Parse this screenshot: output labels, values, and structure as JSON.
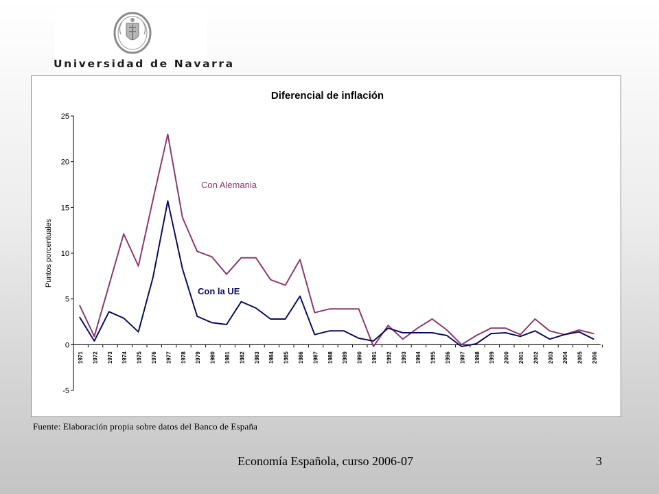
{
  "slide": {
    "institution": "Universidad de Navarra",
    "source_note": "Fuente: Elaboración propia sobre datos del Banco de España",
    "footer": "Economía Española, curso 2006-07",
    "page_number": "3"
  },
  "colors": {
    "alemania": "#8a3a68",
    "ue": "#0b0b5e",
    "axis": "#000000"
  },
  "chart_data": {
    "type": "line",
    "title": "Diferencial de inflación",
    "xlabel": "",
    "ylabel": "Puntos porcentuales",
    "ylim": [
      -5,
      25
    ],
    "yticks": [
      -5,
      0,
      5,
      10,
      15,
      20,
      25
    ],
    "grid": false,
    "categories": [
      "1971",
      "1972",
      "1973",
      "1974",
      "1975",
      "1976",
      "1977",
      "1978",
      "1979",
      "1980",
      "1981",
      "1982",
      "1983",
      "1984",
      "1985",
      "1986",
      "1987",
      "1988",
      "1989",
      "1990",
      "1991",
      "1992",
      "1993",
      "1994",
      "1995",
      "1996",
      "1997",
      "1998",
      "1999",
      "2000",
      "2001",
      "2002",
      "2003",
      "2004",
      "2005",
      "2006"
    ],
    "tick_labels": [
      "1971",
      "1972",
      "1973",
      "1974",
      "1975",
      "1976",
      "1977",
      "1978",
      "1979",
      "1980",
      "1981",
      "1982",
      "1983",
      "1984",
      "1985",
      "1986",
      "1987",
      "1988",
      "1989",
      "1990",
      "1991",
      "1992",
      "1993",
      "1994",
      "1995",
      "1996",
      "1997",
      "1998",
      "1999",
      "2000",
      "2001",
      "2002",
      "2003",
      "2004",
      "2005",
      "2006"
    ],
    "series": [
      {
        "name": "Con Alemania",
        "color": "#8a3a68",
        "values": [
          4.3,
          0.9,
          6.5,
          12.1,
          8.6,
          15.9,
          23.0,
          13.9,
          10.2,
          9.6,
          7.7,
          9.5,
          9.5,
          7.1,
          6.5,
          9.3,
          3.5,
          3.9,
          3.9,
          3.9,
          -0.2,
          2.1,
          0.6,
          1.8,
          2.8,
          1.6,
          0.0,
          1.0,
          1.8,
          1.8,
          1.1,
          2.8,
          1.5,
          1.1,
          1.6,
          1.2
        ]
      },
      {
        "name": "Con la UE",
        "color": "#0b0b5e",
        "values": [
          3.0,
          0.4,
          3.6,
          2.9,
          1.4,
          7.4,
          15.7,
          8.3,
          3.1,
          2.4,
          2.2,
          4.7,
          4.0,
          2.8,
          2.8,
          5.3,
          1.1,
          1.5,
          1.5,
          0.7,
          0.4,
          1.8,
          1.3,
          1.3,
          1.3,
          1.0,
          -0.2,
          0.1,
          1.2,
          1.3,
          0.9,
          1.5,
          0.6,
          1.1,
          1.4,
          0.6
        ]
      }
    ]
  }
}
